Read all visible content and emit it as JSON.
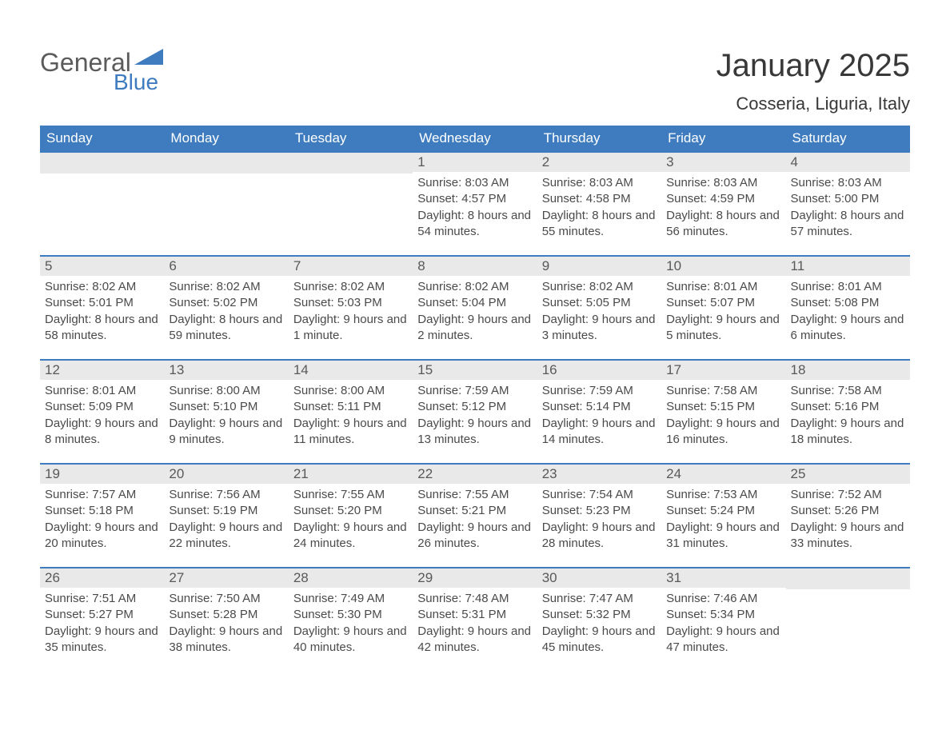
{
  "brand": {
    "word1": "General",
    "word2": "Blue"
  },
  "title": "January 2025",
  "location": "Cosseria, Liguria, Italy",
  "colors": {
    "header_bg": "#3e7cbf",
    "header_text": "#ffffff",
    "daynum_bg": "#e9e9e9",
    "daynum_text": "#595959",
    "body_text": "#4a4a4a",
    "border": "#3e7cbf",
    "logo_gray": "#5b5b5b",
    "logo_blue": "#3e7cbf"
  },
  "day_headers": [
    "Sunday",
    "Monday",
    "Tuesday",
    "Wednesday",
    "Thursday",
    "Friday",
    "Saturday"
  ],
  "weeks": [
    [
      {
        "day": "",
        "sunrise": "",
        "sunset": "",
        "daylight": ""
      },
      {
        "day": "",
        "sunrise": "",
        "sunset": "",
        "daylight": ""
      },
      {
        "day": "",
        "sunrise": "",
        "sunset": "",
        "daylight": ""
      },
      {
        "day": "1",
        "sunrise": "Sunrise: 8:03 AM",
        "sunset": "Sunset: 4:57 PM",
        "daylight": "Daylight: 8 hours and 54 minutes."
      },
      {
        "day": "2",
        "sunrise": "Sunrise: 8:03 AM",
        "sunset": "Sunset: 4:58 PM",
        "daylight": "Daylight: 8 hours and 55 minutes."
      },
      {
        "day": "3",
        "sunrise": "Sunrise: 8:03 AM",
        "sunset": "Sunset: 4:59 PM",
        "daylight": "Daylight: 8 hours and 56 minutes."
      },
      {
        "day": "4",
        "sunrise": "Sunrise: 8:03 AM",
        "sunset": "Sunset: 5:00 PM",
        "daylight": "Daylight: 8 hours and 57 minutes."
      }
    ],
    [
      {
        "day": "5",
        "sunrise": "Sunrise: 8:02 AM",
        "sunset": "Sunset: 5:01 PM",
        "daylight": "Daylight: 8 hours and 58 minutes."
      },
      {
        "day": "6",
        "sunrise": "Sunrise: 8:02 AM",
        "sunset": "Sunset: 5:02 PM",
        "daylight": "Daylight: 8 hours and 59 minutes."
      },
      {
        "day": "7",
        "sunrise": "Sunrise: 8:02 AM",
        "sunset": "Sunset: 5:03 PM",
        "daylight": "Daylight: 9 hours and 1 minute."
      },
      {
        "day": "8",
        "sunrise": "Sunrise: 8:02 AM",
        "sunset": "Sunset: 5:04 PM",
        "daylight": "Daylight: 9 hours and 2 minutes."
      },
      {
        "day": "9",
        "sunrise": "Sunrise: 8:02 AM",
        "sunset": "Sunset: 5:05 PM",
        "daylight": "Daylight: 9 hours and 3 minutes."
      },
      {
        "day": "10",
        "sunrise": "Sunrise: 8:01 AM",
        "sunset": "Sunset: 5:07 PM",
        "daylight": "Daylight: 9 hours and 5 minutes."
      },
      {
        "day": "11",
        "sunrise": "Sunrise: 8:01 AM",
        "sunset": "Sunset: 5:08 PM",
        "daylight": "Daylight: 9 hours and 6 minutes."
      }
    ],
    [
      {
        "day": "12",
        "sunrise": "Sunrise: 8:01 AM",
        "sunset": "Sunset: 5:09 PM",
        "daylight": "Daylight: 9 hours and 8 minutes."
      },
      {
        "day": "13",
        "sunrise": "Sunrise: 8:00 AM",
        "sunset": "Sunset: 5:10 PM",
        "daylight": "Daylight: 9 hours and 9 minutes."
      },
      {
        "day": "14",
        "sunrise": "Sunrise: 8:00 AM",
        "sunset": "Sunset: 5:11 PM",
        "daylight": "Daylight: 9 hours and 11 minutes."
      },
      {
        "day": "15",
        "sunrise": "Sunrise: 7:59 AM",
        "sunset": "Sunset: 5:12 PM",
        "daylight": "Daylight: 9 hours and 13 minutes."
      },
      {
        "day": "16",
        "sunrise": "Sunrise: 7:59 AM",
        "sunset": "Sunset: 5:14 PM",
        "daylight": "Daylight: 9 hours and 14 minutes."
      },
      {
        "day": "17",
        "sunrise": "Sunrise: 7:58 AM",
        "sunset": "Sunset: 5:15 PM",
        "daylight": "Daylight: 9 hours and 16 minutes."
      },
      {
        "day": "18",
        "sunrise": "Sunrise: 7:58 AM",
        "sunset": "Sunset: 5:16 PM",
        "daylight": "Daylight: 9 hours and 18 minutes."
      }
    ],
    [
      {
        "day": "19",
        "sunrise": "Sunrise: 7:57 AM",
        "sunset": "Sunset: 5:18 PM",
        "daylight": "Daylight: 9 hours and 20 minutes."
      },
      {
        "day": "20",
        "sunrise": "Sunrise: 7:56 AM",
        "sunset": "Sunset: 5:19 PM",
        "daylight": "Daylight: 9 hours and 22 minutes."
      },
      {
        "day": "21",
        "sunrise": "Sunrise: 7:55 AM",
        "sunset": "Sunset: 5:20 PM",
        "daylight": "Daylight: 9 hours and 24 minutes."
      },
      {
        "day": "22",
        "sunrise": "Sunrise: 7:55 AM",
        "sunset": "Sunset: 5:21 PM",
        "daylight": "Daylight: 9 hours and 26 minutes."
      },
      {
        "day": "23",
        "sunrise": "Sunrise: 7:54 AM",
        "sunset": "Sunset: 5:23 PM",
        "daylight": "Daylight: 9 hours and 28 minutes."
      },
      {
        "day": "24",
        "sunrise": "Sunrise: 7:53 AM",
        "sunset": "Sunset: 5:24 PM",
        "daylight": "Daylight: 9 hours and 31 minutes."
      },
      {
        "day": "25",
        "sunrise": "Sunrise: 7:52 AM",
        "sunset": "Sunset: 5:26 PM",
        "daylight": "Daylight: 9 hours and 33 minutes."
      }
    ],
    [
      {
        "day": "26",
        "sunrise": "Sunrise: 7:51 AM",
        "sunset": "Sunset: 5:27 PM",
        "daylight": "Daylight: 9 hours and 35 minutes."
      },
      {
        "day": "27",
        "sunrise": "Sunrise: 7:50 AM",
        "sunset": "Sunset: 5:28 PM",
        "daylight": "Daylight: 9 hours and 38 minutes."
      },
      {
        "day": "28",
        "sunrise": "Sunrise: 7:49 AM",
        "sunset": "Sunset: 5:30 PM",
        "daylight": "Daylight: 9 hours and 40 minutes."
      },
      {
        "day": "29",
        "sunrise": "Sunrise: 7:48 AM",
        "sunset": "Sunset: 5:31 PM",
        "daylight": "Daylight: 9 hours and 42 minutes."
      },
      {
        "day": "30",
        "sunrise": "Sunrise: 7:47 AM",
        "sunset": "Sunset: 5:32 PM",
        "daylight": "Daylight: 9 hours and 45 minutes."
      },
      {
        "day": "31",
        "sunrise": "Sunrise: 7:46 AM",
        "sunset": "Sunset: 5:34 PM",
        "daylight": "Daylight: 9 hours and 47 minutes."
      },
      {
        "day": "",
        "sunrise": "",
        "sunset": "",
        "daylight": ""
      }
    ]
  ]
}
